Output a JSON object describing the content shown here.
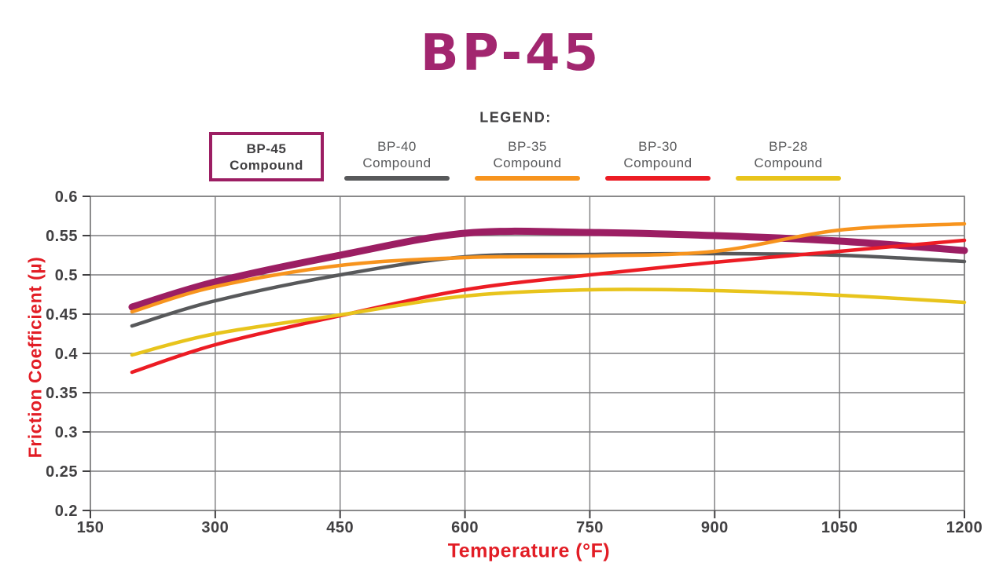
{
  "title": "BP-45",
  "legend": {
    "heading": "LEGEND:",
    "items": [
      {
        "line1": "BP-45",
        "line2": "Compound",
        "color": "#9C1E63",
        "featured": true
      },
      {
        "line1": "BP-40",
        "line2": "Compound",
        "color": "#58595B",
        "featured": false
      },
      {
        "line1": "BP-35",
        "line2": "Compound",
        "color": "#F7941E",
        "featured": false
      },
      {
        "line1": "BP-30",
        "line2": "Compound",
        "color": "#EC1C24",
        "featured": false
      },
      {
        "line1": "BP-28",
        "line2": "Compound",
        "color": "#E8C41C",
        "featured": false
      }
    ]
  },
  "chart_data": {
    "type": "line",
    "title": "BP-45",
    "xlabel": "Temperature (°F)",
    "ylabel": "Friction Coefficient (µ)",
    "x": [
      200,
      300,
      450,
      600,
      750,
      900,
      1050,
      1200
    ],
    "series": [
      {
        "name": "BP-45 Compound",
        "color": "#9C1E63",
        "width": 9,
        "values": [
          0.459,
          0.491,
          0.525,
          0.553,
          0.554,
          0.55,
          0.543,
          0.531
        ]
      },
      {
        "name": "BP-40 Compound",
        "color": "#58595B",
        "width": 4.5,
        "values": [
          0.435,
          0.467,
          0.5,
          0.523,
          0.526,
          0.527,
          0.525,
          0.517
        ]
      },
      {
        "name": "BP-35 Compound",
        "color": "#F7941E",
        "width": 4.5,
        "values": [
          0.453,
          0.485,
          0.512,
          0.522,
          0.524,
          0.53,
          0.557,
          0.565
        ]
      },
      {
        "name": "BP-30 Compound",
        "color": "#EC1C24",
        "width": 4.5,
        "values": [
          0.376,
          0.411,
          0.448,
          0.481,
          0.5,
          0.516,
          0.53,
          0.544
        ]
      },
      {
        "name": "BP-28 Compound",
        "color": "#E8C41C",
        "width": 4.5,
        "values": [
          0.398,
          0.425,
          0.449,
          0.473,
          0.481,
          0.48,
          0.474,
          0.465
        ]
      }
    ],
    "xticks": [
      150,
      300,
      450,
      600,
      750,
      900,
      1050,
      1200
    ],
    "yticks": [
      0.2,
      0.25,
      0.3,
      0.35,
      0.4,
      0.45,
      0.5,
      0.55,
      0.6
    ],
    "xlim": [
      150,
      1200
    ],
    "ylim": [
      0.2,
      0.6
    ],
    "grid": true,
    "legend_position": "top"
  },
  "colors": {
    "title": "#A2266F",
    "axis_title": "#E21D25",
    "tick_label": "#414042",
    "grid": "#7C7C7E",
    "legend_text": "#58595B"
  }
}
